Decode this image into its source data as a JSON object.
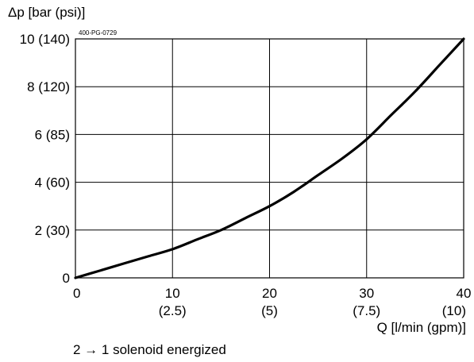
{
  "chart_data": {
    "type": "line",
    "code": "400-PG-0729",
    "ylabel": "Δp [bar (psi)]",
    "xlabel": "Q [l/min (gpm)]",
    "caption": "2 → 1 solenoid energized",
    "xlim": [
      0,
      40
    ],
    "ylim": [
      0,
      10
    ],
    "grid": true,
    "x_ticks": [
      {
        "value": 0,
        "label": "0",
        "sub": ""
      },
      {
        "value": 10,
        "label": "10",
        "sub": "(2.5)"
      },
      {
        "value": 20,
        "label": "20",
        "sub": "(5)"
      },
      {
        "value": 30,
        "label": "30",
        "sub": "(7.5)"
      },
      {
        "value": 40,
        "label": "40",
        "sub": "(10)"
      }
    ],
    "y_ticks": [
      {
        "value": 0,
        "label": "0"
      },
      {
        "value": 2,
        "label": "2 (30)"
      },
      {
        "value": 4,
        "label": "4 (60)"
      },
      {
        "value": 6,
        "label": "6 (85)"
      },
      {
        "value": 8,
        "label": "8 (120)"
      },
      {
        "value": 10,
        "label": "10 (140)"
      }
    ],
    "series": [
      {
        "color": "#000000",
        "x": [
          0,
          2.5,
          5,
          7.5,
          10,
          12.5,
          15,
          17.5,
          20,
          22.5,
          25,
          27.5,
          30,
          32.5,
          35,
          37.5,
          40
        ],
        "y": [
          0,
          0.3,
          0.6,
          0.9,
          1.2,
          1.6,
          2.0,
          2.5,
          3.0,
          3.6,
          4.3,
          5.0,
          5.8,
          6.8,
          7.8,
          8.9,
          10.0
        ]
      }
    ]
  }
}
